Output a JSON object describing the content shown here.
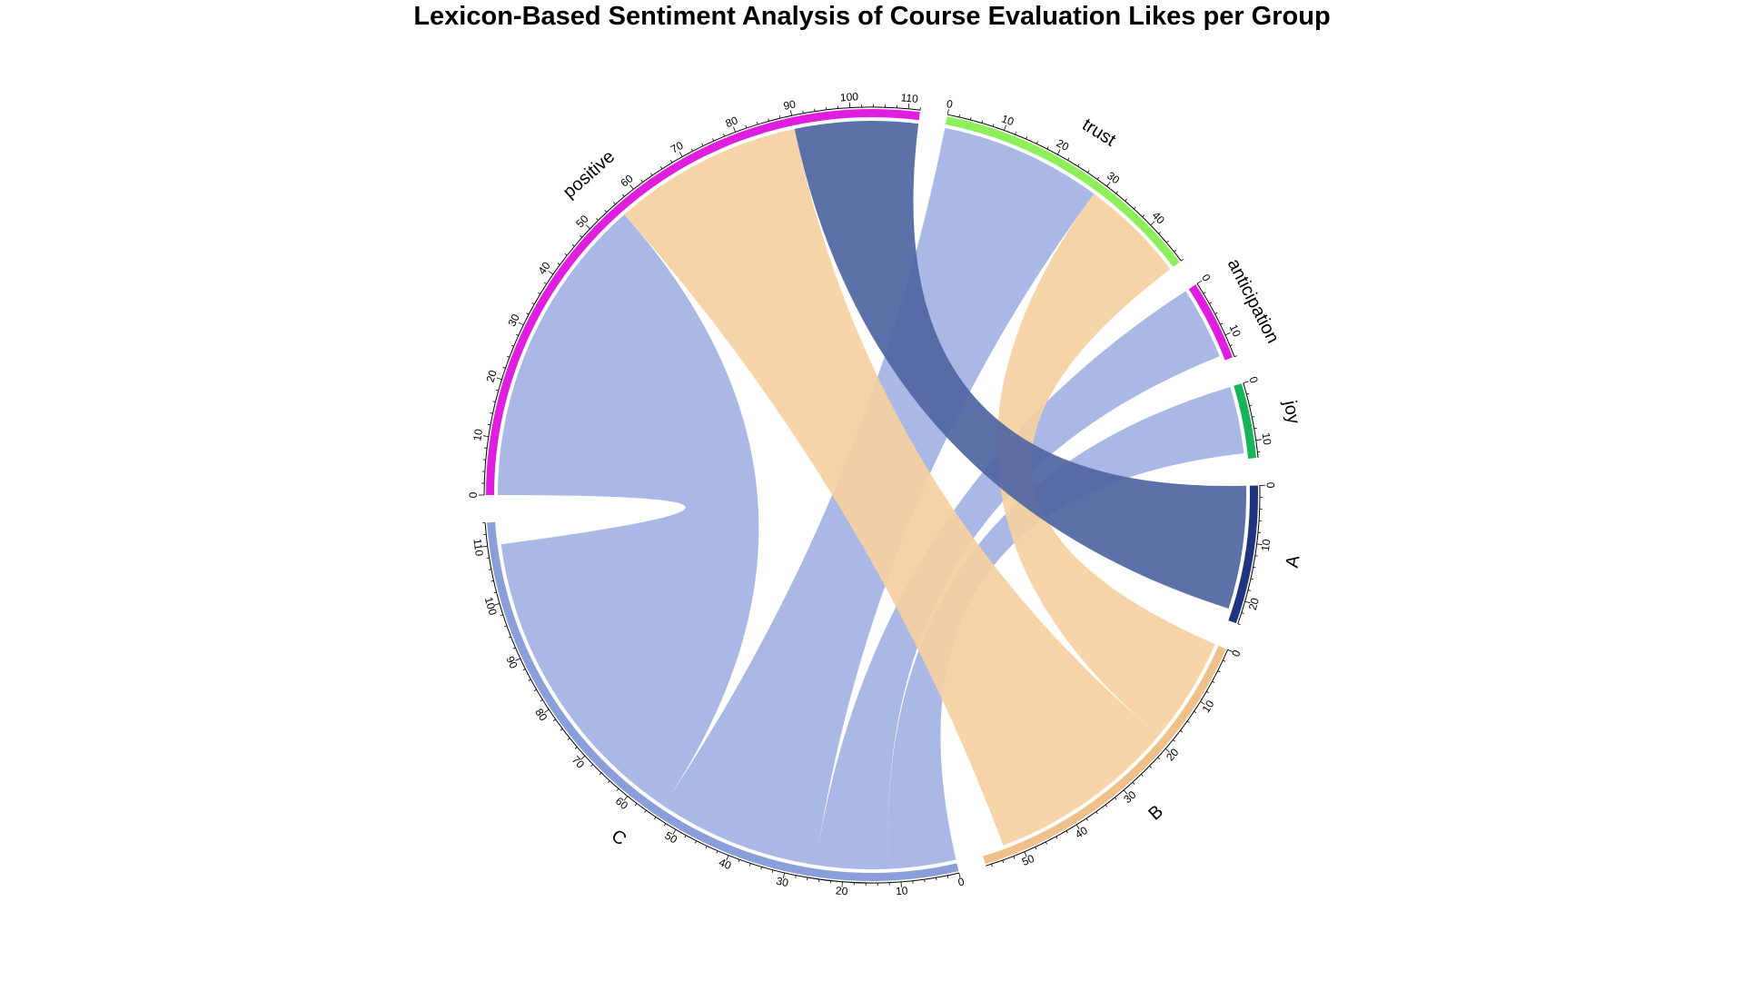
{
  "chart_data": {
    "type": "chord",
    "title": "Lexicon-Based Sentiment Analysis of Course Evaluation Likes per Group",
    "sectors": [
      {
        "name": "positive",
        "total": 112,
        "color": "#e01ee0"
      },
      {
        "name": "trust",
        "total": 48,
        "color": "#8def5a"
      },
      {
        "name": "anticipation",
        "total": 14,
        "color": "#e01ee0"
      },
      {
        "name": "joy",
        "total": 13,
        "color": "#17b45a"
      },
      {
        "name": "A",
        "total": 24,
        "color": "#1f3580"
      },
      {
        "name": "B",
        "total": 57,
        "color": "#f0c08a"
      },
      {
        "name": "C",
        "total": 114,
        "color": "#8a9fd9"
      }
    ],
    "links": [
      {
        "from": "C",
        "to": "positive",
        "value": 56,
        "color": "#a3b3e2"
      },
      {
        "from": "B",
        "to": "positive",
        "value": 34,
        "color": "#f5d1a1"
      },
      {
        "from": "A",
        "to": "positive",
        "value": 22,
        "color": "#5166a3"
      },
      {
        "from": "C",
        "to": "trust",
        "value": 29,
        "color": "#a3b3e2"
      },
      {
        "from": "B",
        "to": "trust",
        "value": 19,
        "color": "#f5d1a1"
      },
      {
        "from": "C",
        "to": "anticipation",
        "value": 13,
        "color": "#a3b3e2"
      },
      {
        "from": "C",
        "to": "joy",
        "value": 12,
        "color": "#a3b3e2"
      }
    ],
    "tick_step": 10
  }
}
